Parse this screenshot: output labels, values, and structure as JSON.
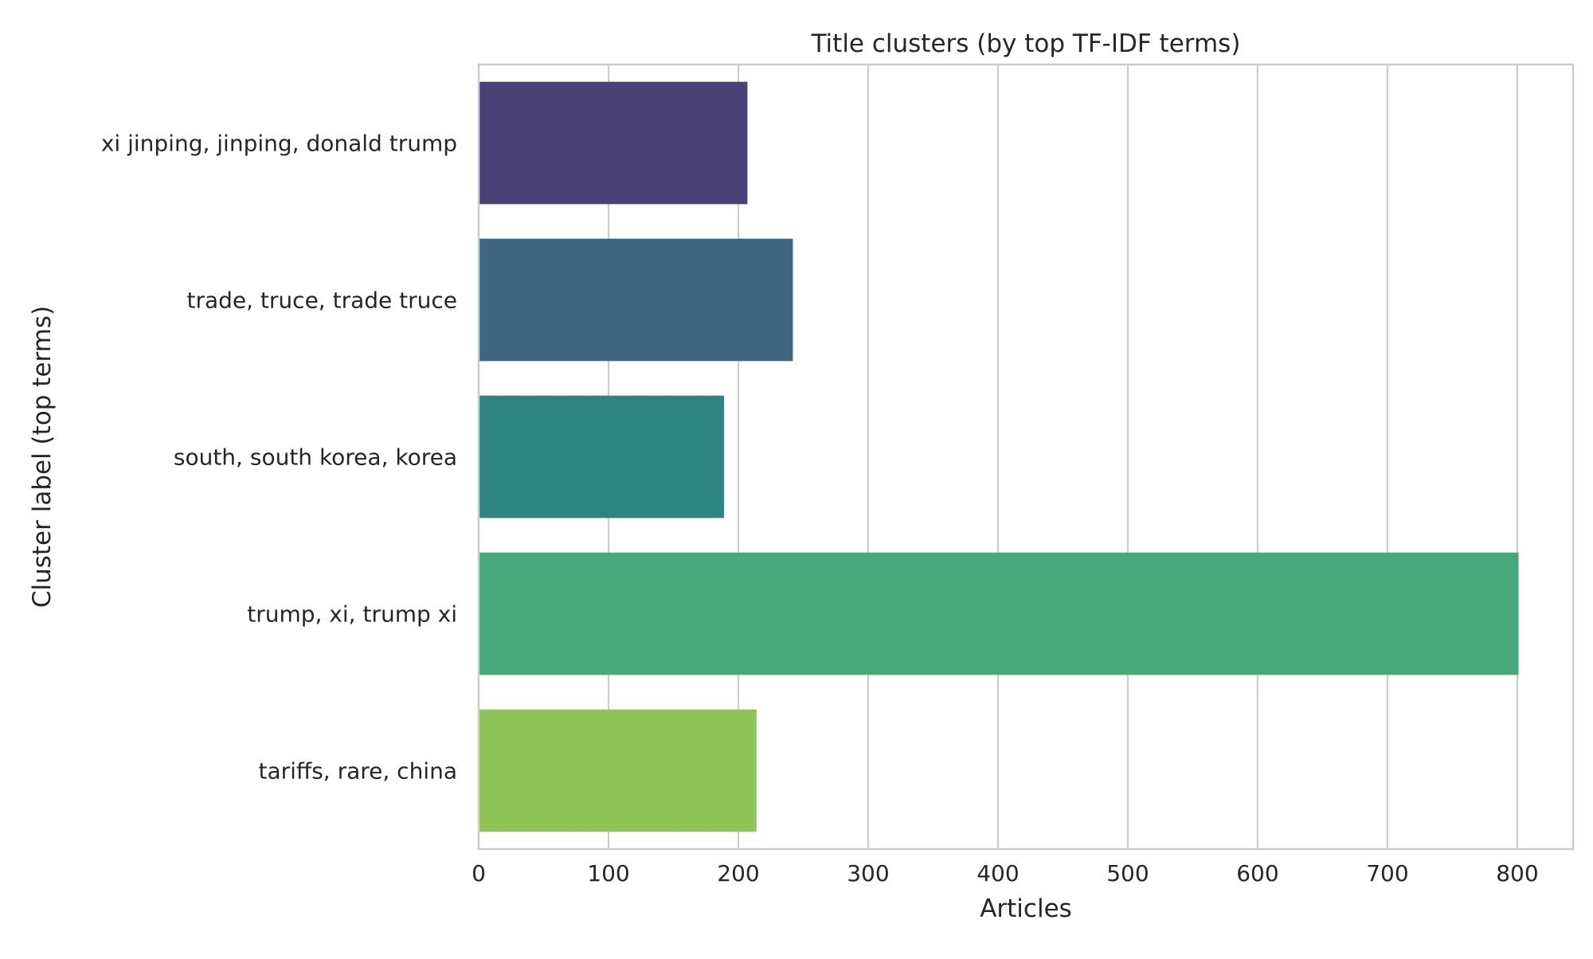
{
  "chart_data": {
    "type": "bar",
    "orientation": "horizontal",
    "title": "Title clusters (by top TF-IDF terms)",
    "xlabel": "Articles",
    "ylabel": "Cluster label (top terms)",
    "categories": [
      "xi jinping, jinping, donald trump",
      "trade, truce, trade truce",
      "south, south korea, korea",
      "trump, xi, trump xi",
      "tariffs, rare, china"
    ],
    "values": [
      207,
      242,
      189,
      801,
      214
    ],
    "colors": [
      "#4b4179",
      "#3e6680",
      "#2e847f",
      "#47a87a",
      "#8fc556"
    ],
    "xlim": [
      0,
      843
    ],
    "xticks": [
      0,
      100,
      200,
      300,
      400,
      500,
      600,
      700,
      800
    ],
    "grid": "vertical",
    "legend": "none"
  }
}
